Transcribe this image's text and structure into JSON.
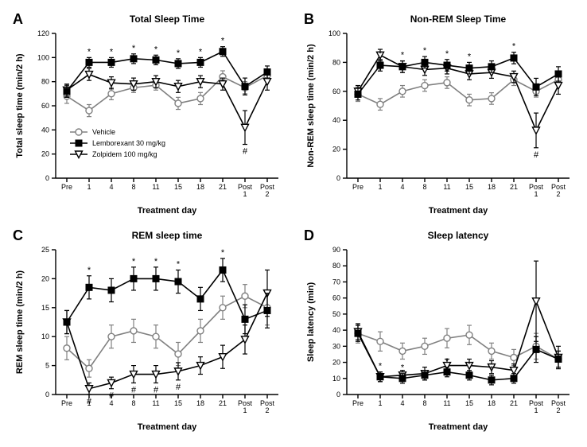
{
  "figure": {
    "background_color": "#ffffff",
    "axis_color": "#000000",
    "text_color": "#000000",
    "font_family": "Arial",
    "vehicle_color": "#808080",
    "lemborexant_color": "#000000",
    "zolpidem_color": "#000000",
    "x_categories": [
      "Pre",
      "1",
      "4",
      "8",
      "11",
      "15",
      "18",
      "21",
      "Post\n1",
      "Post\n2"
    ],
    "legend": {
      "items": [
        {
          "label": "Vehicle",
          "marker": "open-circle",
          "color": "#808080"
        },
        {
          "label": "Lemborexant 30 mg/kg",
          "marker": "filled-square",
          "color": "#000000"
        },
        {
          "label": "Zolpidem 100 mg/kg",
          "marker": "open-triangle-down",
          "color": "#000000"
        }
      ],
      "fontsize": 9
    },
    "panels": {
      "A": {
        "letter": "A",
        "title": "Total Sleep Time",
        "ylabel": "Total sleep time (min/2 h)",
        "xlabel": "Treatment day",
        "ylim": [
          0,
          120
        ],
        "ytick_step": 20,
        "title_fontsize": 12,
        "label_fontsize": 11,
        "tick_fontsize": 9,
        "show_legend": true,
        "series": {
          "vehicle": {
            "y": [
              68,
              56,
              70,
              75,
              77,
              62,
              66,
              84,
              75,
              85
            ],
            "err": [
              6,
              5,
              5,
              4,
              4,
              5,
              5,
              5,
              5,
              5
            ]
          },
          "lemborexant": {
            "y": [
              72,
              96,
              96,
              99,
              98,
              95,
              96,
              105,
              76,
              88
            ],
            "err": [
              5,
              4,
              4,
              4,
              4,
              4,
              4,
              4,
              7,
              5
            ],
            "sig": [
              "",
              "*",
              "*",
              "*",
              "*",
              "*",
              "*",
              "*",
              "",
              ""
            ]
          },
          "zolpidem": {
            "y": [
              73,
              86,
              79,
              78,
              80,
              76,
              80,
              78,
              42,
              80
            ],
            "err": [
              5,
              5,
              5,
              5,
              5,
              5,
              5,
              5,
              14,
              7
            ],
            "sig": [
              "",
              "",
              "",
              "",
              "",
              "",
              "",
              "",
              "#",
              ""
            ]
          }
        }
      },
      "B": {
        "letter": "B",
        "title": "Non-REM Sleep Time",
        "ylabel": "Non-REM sleep time (min/2 h)",
        "xlabel": "Treatment day",
        "ylim": [
          0,
          100
        ],
        "ytick_step": 20,
        "title_fontsize": 12,
        "label_fontsize": 11,
        "tick_fontsize": 9,
        "show_legend": false,
        "series": {
          "vehicle": {
            "y": [
              58,
              51,
              60,
              64,
              66,
              54,
              55,
              68,
              60,
              68
            ],
            "err": [
              5,
              4,
              4,
              4,
              4,
              4,
              4,
              4,
              4,
              4
            ]
          },
          "lemborexant": {
            "y": [
              58,
              78,
              77,
              80,
              78,
              76,
              77,
              83,
              63,
              72
            ],
            "err": [
              4,
              4,
              4,
              4,
              4,
              4,
              4,
              4,
              6,
              5
            ],
            "sig": [
              "",
              "*",
              "*",
              "*",
              "*",
              "*",
              "",
              "*",
              "",
              ""
            ]
          },
          "zolpidem": {
            "y": [
              60,
              85,
              77,
              75,
              76,
              72,
              73,
              70,
              33,
              64
            ],
            "err": [
              4,
              4,
              4,
              4,
              4,
              4,
              4,
              4,
              12,
              6
            ],
            "sig": [
              "",
              "#",
              "",
              "",
              "",
              "",
              "",
              "",
              "#",
              ""
            ]
          }
        }
      },
      "C": {
        "letter": "C",
        "title": "REM sleep time",
        "ylabel": "REM sleep time (min/2 h)",
        "xlabel": "Treatment day",
        "ylim": [
          0,
          25
        ],
        "ytick_step": 5,
        "title_fontsize": 12,
        "label_fontsize": 11,
        "tick_fontsize": 9,
        "show_legend": false,
        "series": {
          "vehicle": {
            "y": [
              8,
              4.5,
              10,
              11,
              10,
              7,
              11,
              15,
              17,
              15
            ],
            "err": [
              2,
              1.5,
              2,
              2,
              2,
              2,
              2,
              2,
              2,
              3
            ]
          },
          "lemborexant": {
            "y": [
              12.5,
              18.5,
              18,
              20,
              20,
              19.5,
              16.5,
              21.5,
              13,
              14.5
            ],
            "err": [
              2,
              2,
              2,
              2,
              2,
              2,
              2,
              2,
              2.5,
              3
            ],
            "sig": [
              "",
              "*",
              "",
              "*",
              "*",
              "*",
              "",
              "*",
              "",
              ""
            ]
          },
          "zolpidem": {
            "y": [
              12.5,
              1,
              2,
              3.5,
              3.5,
              4,
              5,
              6.5,
              9.5,
              17.5
            ],
            "err": [
              2,
              1,
              1,
              1.5,
              1.5,
              1.5,
              1.5,
              2,
              2.5,
              4
            ],
            "sig": [
              "",
              "#",
              "#",
              "#",
              "#",
              "#",
              "",
              "",
              "",
              ""
            ]
          }
        }
      },
      "D": {
        "letter": "D",
        "title": "Sleep latency",
        "ylabel": "Sleep latency (min)",
        "xlabel": "Treatment day",
        "ylim": [
          0,
          90
        ],
        "ytick_step": 10,
        "title_fontsize": 12,
        "label_fontsize": 11,
        "tick_fontsize": 9,
        "show_legend": false,
        "series": {
          "vehicle": {
            "y": [
              38,
              33,
              27,
              30,
              35,
              37,
              27,
              23,
              30,
              22
            ],
            "err": [
              6,
              6,
              5,
              5,
              6,
              6,
              5,
              5,
              8,
              5
            ]
          },
          "lemborexant": {
            "y": [
              38,
              11,
              10,
              12,
              14,
              12,
              9,
              10,
              28,
              22
            ],
            "err": [
              5,
              3,
              3,
              3,
              3,
              3,
              3,
              3,
              8,
              5
            ],
            "sig": [
              "",
              "*",
              "*",
              "",
              "*",
              "*",
              "*",
              "",
              "",
              ""
            ]
          },
          "zolpidem": {
            "y": [
              39,
              11,
              12,
              13,
              18,
              18,
              17,
              15,
              58,
              23
            ],
            "err": [
              5,
              3,
              3,
              4,
              4,
              4,
              4,
              4,
              25,
              7
            ],
            "sig": [
              "",
              "",
              "",
              "",
              "",
              "",
              "",
              "",
              "",
              ""
            ]
          }
        }
      }
    }
  }
}
